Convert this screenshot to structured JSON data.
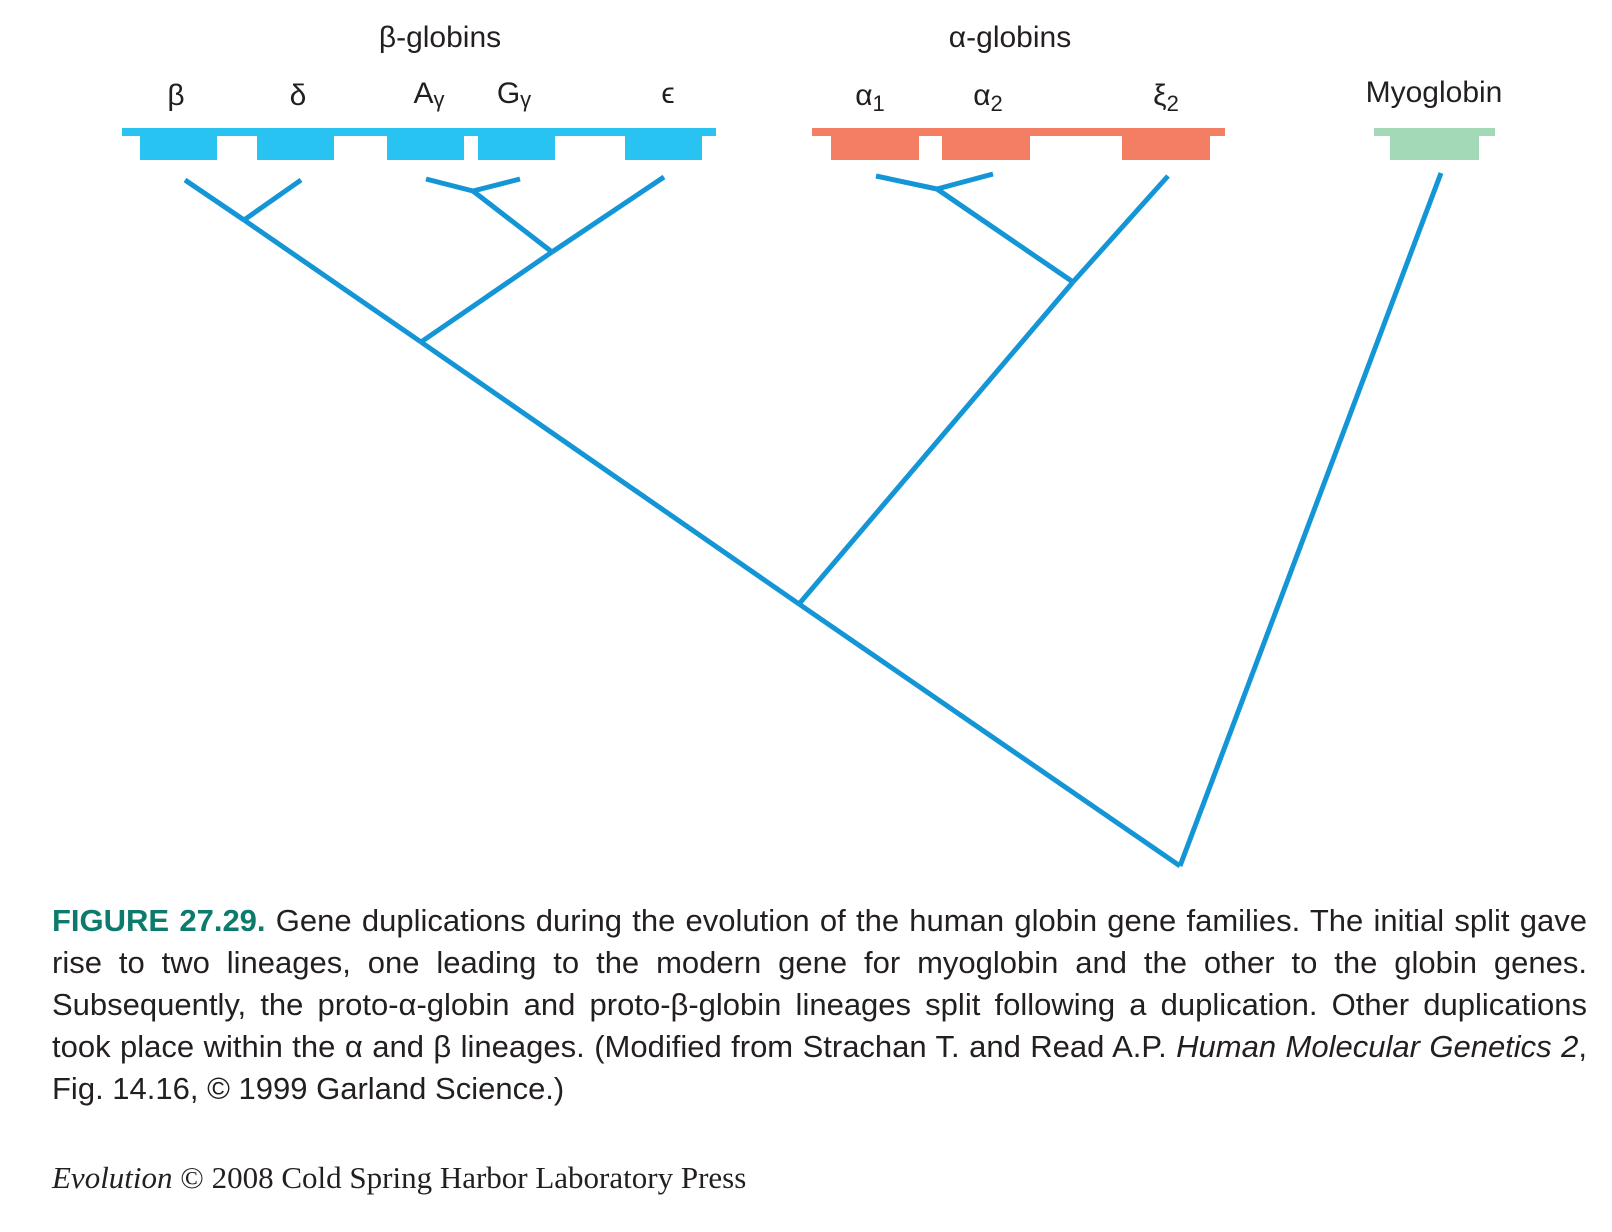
{
  "groups": {
    "beta_title": "β-globins",
    "alpha_title": "α-globins"
  },
  "genes": {
    "beta": "β",
    "delta": "δ",
    "a_gamma_base": "A",
    "a_gamma_sub": "γ",
    "g_gamma_base": "G",
    "g_gamma_sub": "γ",
    "epsilon": "ϵ",
    "alpha1_base": "α",
    "alpha1_sub": "1",
    "alpha2_base": "α",
    "alpha2_sub": "2",
    "xi2_base": "ξ",
    "xi2_sub": "2",
    "myoglobin": "Myoglobin"
  },
  "colors": {
    "beta_cluster": "#29c3f2",
    "alpha_cluster": "#f47e64",
    "myoglobin": "#a3d9b6",
    "tree": "#1496d6",
    "caption_label": "#0c7a6c",
    "text": "#231f20"
  },
  "caption": {
    "label": "FIGURE 27.29.",
    "text_1": " Gene duplications during the evolution of the human globin gene families. The initial split gave rise to two lineages, one leading to the modern gene for myoglobin and the other to the globin genes. Subsequently, the proto-α-globin and proto-β-globin lineages split following a duplication. Other duplications took place within the α and β lineages. (Modified from Strachan T. and Read A.P. ",
    "book_title": "Human Molecular Genetics 2",
    "text_2": ", Fig. 14.16, © 1999 Garland Science.)"
  },
  "credit": {
    "book": "Evolution",
    "rest": " © 2008 Cold Spring Harbor Laboratory Press"
  }
}
